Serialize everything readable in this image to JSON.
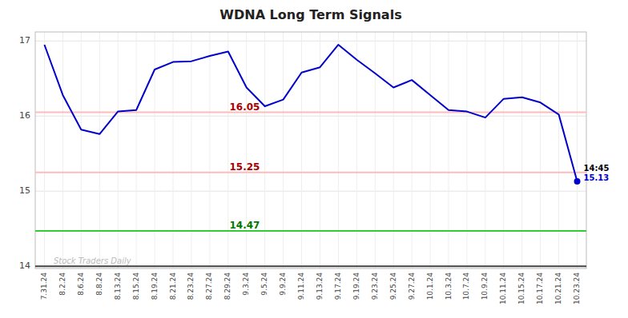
{
  "chart_data": {
    "type": "line",
    "title": "WDNA Long Term Signals",
    "categories": [
      "7.31.24",
      "8.2.24",
      "8.6.24",
      "8.8.24",
      "8.13.24",
      "8.15.24",
      "8.19.24",
      "8.21.24",
      "8.23.24",
      "8.27.24",
      "8.29.24",
      "9.3.24",
      "9.5.24",
      "9.9.24",
      "9.11.24",
      "9.13.24",
      "9.17.24",
      "9.19.24",
      "9.23.24",
      "9.25.24",
      "9.27.24",
      "10.1.24",
      "10.3.24",
      "10.7.24",
      "10.9.24",
      "10.11.24",
      "10.15.24",
      "10.17.24",
      "10.21.24",
      "10.23.24"
    ],
    "values": [
      16.95,
      16.28,
      15.82,
      15.76,
      16.06,
      16.08,
      16.62,
      16.72,
      16.73,
      16.8,
      16.86,
      16.38,
      16.13,
      16.22,
      16.58,
      16.65,
      16.95,
      16.75,
      16.57,
      16.38,
      16.48,
      16.28,
      16.08,
      16.06,
      15.98,
      16.23,
      16.25,
      16.18,
      16.02,
      15.13
    ],
    "color": "#0000cc",
    "ylim": [
      13.97,
      17.12
    ],
    "yticks": [
      14,
      15,
      16,
      17
    ],
    "grid": true,
    "hlines": [
      {
        "value": 16.05,
        "label": "16.05",
        "color": "#ffbbbb",
        "label_color": "#aa0000"
      },
      {
        "value": 15.25,
        "label": "15.25",
        "color": "#ffbbbb",
        "label_color": "#aa0000"
      },
      {
        "value": 14.47,
        "label": "14.47",
        "color": "#33cc33",
        "label_color": "#007700"
      }
    ],
    "baseline": {
      "value": 14.0,
      "color": "#444444"
    },
    "watermark": {
      "text": "Stock Traders Daily",
      "color": "#bbbbbb"
    },
    "annotations": [
      "14:45",
      "15.13"
    ]
  }
}
